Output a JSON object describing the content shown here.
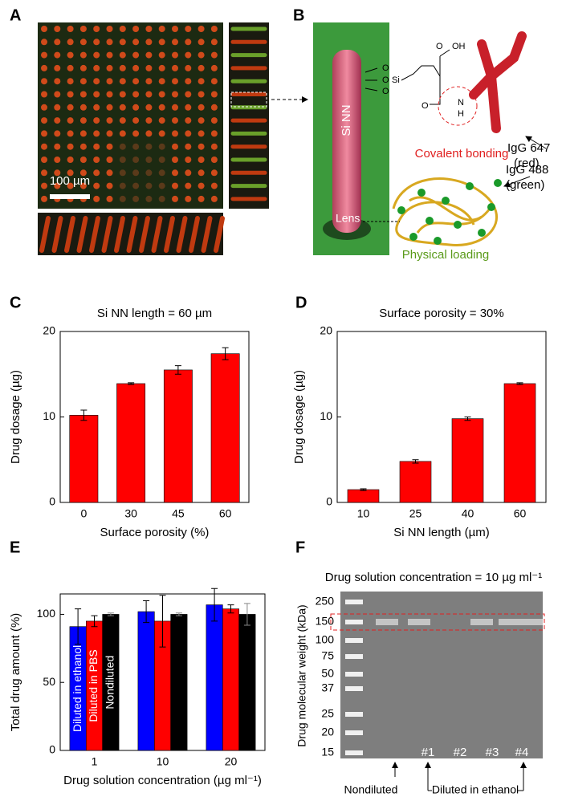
{
  "panel_labels": [
    "A",
    "B",
    "C",
    "D",
    "E",
    "F"
  ],
  "panel_a": {
    "scale_bar": "100 µm"
  },
  "panel_b": {
    "pillar": "Si NN",
    "oh": "OH",
    "o": "O",
    "si": "Si",
    "n": "N",
    "h": "H",
    "igg647": "IgG 647",
    "igg647_color": "(red)",
    "covalent": "Covalent bonding",
    "igg488": "IgG 488",
    "igg488_color": "(green)",
    "lens": "Lens",
    "physical": "Physical loading"
  },
  "chart_data": [
    {
      "type": "bar",
      "title": "Si NN length = 60 µm",
      "x_label": "Surface porosity (%)",
      "y_label": "Drug dosage (µg)",
      "categories": [
        "0",
        "30",
        "45",
        "60"
      ],
      "values": [
        10.2,
        13.9,
        15.5,
        17.4
      ],
      "errors": [
        0.6,
        0.1,
        0.5,
        0.7
      ],
      "color": "#ff0000",
      "ylim": [
        0,
        20
      ],
      "yticks": [
        0,
        10,
        20
      ]
    },
    {
      "type": "bar",
      "title": "Surface porosity = 30%",
      "x_label": "Si NN length (µm)",
      "y_label": "Drug dosage (µg)",
      "categories": [
        "10",
        "25",
        "40",
        "60"
      ],
      "values": [
        1.5,
        4.8,
        9.8,
        13.9
      ],
      "errors": [
        0.1,
        0.2,
        0.2,
        0.1
      ],
      "color": "#ff0000",
      "ylim": [
        0,
        20
      ],
      "yticks": [
        0,
        10,
        20
      ]
    },
    {
      "type": "bar",
      "x_label": "Drug solution concentration (µg ml⁻¹)",
      "y_label": "Total drug amount (%)",
      "categories": [
        "1",
        "10",
        "20"
      ],
      "legend": "inside-bars",
      "series": [
        {
          "name": "Diluted in ethanol",
          "color": "#0000ff",
          "values": [
            91,
            102,
            107
          ],
          "errors": [
            13,
            8,
            12
          ]
        },
        {
          "name": "Diluted in PBS",
          "color": "#ff0000",
          "values": [
            95,
            95,
            104
          ],
          "errors": [
            4,
            19,
            3
          ]
        },
        {
          "name": "Nondiluted",
          "color": "#000000",
          "values": [
            100,
            100,
            100
          ],
          "errors": [
            1,
            1,
            8
          ]
        }
      ],
      "ylim": [
        0,
        115
      ],
      "yticks": [
        0,
        50,
        100
      ]
    }
  ],
  "panel_f": {
    "title": "Drug solution concentration = 10 µg ml⁻¹",
    "y_label": "Drug molecular weight (kDa)",
    "mw_labels": [
      "250",
      "150",
      "100",
      "75",
      "50",
      "37",
      "25",
      "20",
      "15"
    ],
    "lanes": [
      "#1",
      "#2",
      "#3",
      "#4"
    ],
    "nondiluted": "Nondiluted",
    "diluted": "Diluted in ethanol"
  }
}
